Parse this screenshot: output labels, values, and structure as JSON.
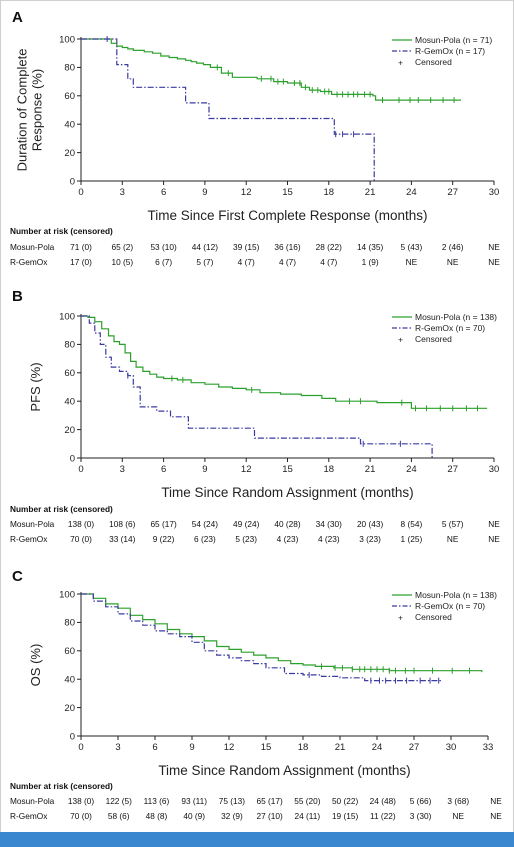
{
  "colors": {
    "mosun": "#2ca02c",
    "gemox": "#3a3aa0",
    "bar": "#3a86cf"
  },
  "risk_header": "Number at risk (censored)",
  "chart_data": [
    {
      "panel": "A",
      "type": "line",
      "title": "",
      "xlabel": "Time Since First Complete Response (months)",
      "ylabel_lines": [
        "Duration of Complete",
        "Response (%)"
      ],
      "xlim": [
        0,
        30
      ],
      "ylim": [
        0,
        100
      ],
      "xticks": [
        0,
        3,
        6,
        9,
        12,
        15,
        18,
        21,
        24,
        27,
        30
      ],
      "yticks": [
        0,
        20,
        40,
        60,
        80,
        100
      ],
      "legend_position": "top-right",
      "censor_legend": "Censored",
      "series": [
        {
          "name": "Mosun-Pola (n = 71)",
          "style": "solid",
          "x": [
            0,
            1.8,
            2.2,
            2.6,
            3.0,
            3.4,
            3.8,
            4.6,
            5.2,
            5.8,
            6.4,
            7.0,
            7.6,
            8.0,
            8.4,
            8.9,
            9.4,
            10.2,
            11.0,
            12.8,
            14.0,
            15.0,
            16.0,
            16.6,
            17.4,
            18.2,
            21.2,
            21.4,
            27.6
          ],
          "y": [
            100,
            100,
            97,
            95,
            94,
            93,
            92,
            91,
            90,
            88,
            87,
            86,
            85,
            84,
            83,
            82,
            80,
            76,
            73,
            72,
            70,
            69,
            66,
            64,
            63,
            61,
            60,
            57,
            57
          ],
          "censor_x": [
            9.9,
            10.7,
            13.1,
            13.8,
            14.3,
            14.7,
            15.5,
            15.9,
            16.3,
            16.8,
            17.2,
            17.7,
            18.0,
            18.6,
            19.0,
            19.4,
            19.8,
            20.1,
            20.6,
            21.0,
            21.9,
            23.1,
            23.9,
            24.5,
            25.4,
            26.3,
            27.1
          ]
        },
        {
          "name": "R-GemOx (n = 17)",
          "style": "dashdot",
          "x": [
            0,
            2.0,
            2.6,
            3.4,
            3.8,
            7.6,
            9.3,
            18.1,
            18.4,
            21.3,
            21.3
          ],
          "y": [
            100,
            100,
            82,
            72,
            66,
            55,
            44,
            44,
            33,
            33,
            0
          ],
          "censor_x": [
            1.9,
            18.5,
            19.0,
            19.8
          ]
        }
      ],
      "risk_table": {
        "labels": [
          "Mosun-Pola",
          "R-GemOx"
        ],
        "rows": [
          [
            "71 (0)",
            "65 (2)",
            "53 (10)",
            "44 (12)",
            "39 (15)",
            "36 (16)",
            "28 (22)",
            "14 (35)",
            "5 (43)",
            "2 (46)",
            "NE"
          ],
          [
            "17 (0)",
            "10 (5)",
            "6 (7)",
            "5 (7)",
            "4 (7)",
            "4 (7)",
            "4 (7)",
            "1 (9)",
            "NE",
            "NE",
            "NE"
          ]
        ]
      }
    },
    {
      "panel": "B",
      "type": "line",
      "title": "",
      "xlabel": "Time Since Random Assignment (months)",
      "ylabel_lines": [
        "PFS (%)"
      ],
      "xlim": [
        0,
        30
      ],
      "ylim": [
        0,
        100
      ],
      "xticks": [
        0,
        3,
        6,
        9,
        12,
        15,
        18,
        21,
        24,
        27,
        30
      ],
      "yticks": [
        0,
        20,
        40,
        60,
        80,
        100
      ],
      "legend_position": "top-right",
      "censor_legend": "Censored",
      "series": [
        {
          "name": "Mosun-Pola (n = 138)",
          "style": "solid",
          "x": [
            0,
            0.5,
            1.0,
            1.5,
            2.0,
            2.4,
            2.8,
            3.2,
            3.6,
            4.0,
            4.5,
            5.0,
            5.5,
            6.0,
            7.0,
            8.0,
            9.0,
            10.0,
            11.0,
            12.0,
            13.0,
            14.5,
            16.0,
            17.5,
            18.5,
            21.5,
            24.0,
            29.5
          ],
          "y": [
            100,
            99,
            96,
            91,
            86,
            82,
            80,
            74,
            68,
            64,
            61,
            59,
            57,
            56,
            55,
            53,
            52,
            50,
            49,
            48,
            46,
            45,
            44,
            42,
            40,
            39,
            35,
            35
          ],
          "censor_x": [
            6.6,
            7.4,
            12.4,
            19.5,
            20.3,
            23.3,
            24.3,
            25.1,
            26.1,
            27.0,
            28.0,
            28.8
          ]
        },
        {
          "name": "R-GemOx (n = 70)",
          "style": "dashdot",
          "x": [
            0,
            0.6,
            1.0,
            1.4,
            1.8,
            2.2,
            2.8,
            3.4,
            3.8,
            4.3,
            5.5,
            6.5,
            7.8,
            11.5,
            12.6,
            13.3,
            20.3,
            25.5,
            25.5
          ],
          "y": [
            100,
            95,
            88,
            80,
            71,
            64,
            61,
            58,
            50,
            36,
            33,
            29,
            21,
            21,
            14,
            14,
            10,
            10,
            0
          ],
          "censor_x": [
            3.4,
            20.5,
            23.2
          ]
        }
      ],
      "risk_table": {
        "labels": [
          "Mosun-Pola",
          "R-GemOx"
        ],
        "rows": [
          [
            "138 (0)",
            "108 (6)",
            "65 (17)",
            "54 (24)",
            "49 (24)",
            "40 (28)",
            "34 (30)",
            "20 (43)",
            "8 (54)",
            "5 (57)",
            "NE"
          ],
          [
            "70 (0)",
            "33 (14)",
            "9 (22)",
            "6 (23)",
            "5 (23)",
            "4 (23)",
            "4 (23)",
            "3 (23)",
            "1 (25)",
            "NE",
            "NE"
          ]
        ]
      }
    },
    {
      "panel": "C",
      "type": "line",
      "title": "",
      "xlabel": "Time Since Random Assignment (months)",
      "ylabel_lines": [
        "OS (%)"
      ],
      "xlim": [
        0,
        33
      ],
      "ylim": [
        0,
        100
      ],
      "xticks": [
        0,
        3,
        6,
        9,
        12,
        15,
        18,
        21,
        24,
        27,
        30,
        33
      ],
      "yticks": [
        0,
        20,
        40,
        60,
        80,
        100
      ],
      "legend_position": "top-right",
      "censor_legend": "Censored",
      "series": [
        {
          "name": "Mosun-Pola (n = 138)",
          "style": "solid",
          "x": [
            0,
            1.0,
            2.0,
            3.0,
            4.0,
            5.0,
            6.0,
            7.0,
            8.0,
            9.0,
            10.0,
            11.0,
            12.0,
            13.0,
            14.0,
            15.0,
            16.0,
            17.0,
            18.0,
            19.0,
            20.5,
            22.0,
            25.0,
            32.5
          ],
          "y": [
            100,
            97,
            93,
            90,
            85,
            82,
            79,
            75,
            72,
            70,
            67,
            63,
            61,
            59,
            57,
            55,
            53,
            51,
            50,
            49,
            48,
            47,
            46,
            45
          ],
          "censor_x": [
            19.5,
            20.6,
            21.2,
            22.0,
            22.6,
            23.0,
            23.5,
            24.0,
            24.5,
            25.0,
            25.5,
            26.3,
            27.0,
            28.5,
            30.1,
            31.5
          ]
        },
        {
          "name": "R-GemOx (n = 70)",
          "style": "dashdot",
          "x": [
            0,
            1.0,
            2.0,
            3.0,
            4.0,
            5.0,
            6.0,
            7.0,
            8.0,
            9.0,
            10.0,
            11.0,
            12.0,
            13.0,
            14.0,
            15.0,
            16.5,
            18.0,
            19.5,
            21.0,
            23.0,
            29.3
          ],
          "y": [
            100,
            95,
            91,
            86,
            81,
            78,
            74,
            72,
            70,
            66,
            60,
            57,
            55,
            53,
            51,
            48,
            44,
            43,
            42,
            41,
            39,
            39
          ],
          "censor_x": [
            18.5,
            23.5,
            24.2,
            24.7,
            25.5,
            26.4,
            27.5,
            28.3,
            29.0
          ]
        }
      ],
      "risk_table": {
        "labels": [
          "Mosun-Pola",
          "R-GemOx"
        ],
        "rows": [
          [
            "138 (0)",
            "122 (5)",
            "113 (6)",
            "93 (11)",
            "75 (13)",
            "65 (17)",
            "55 (20)",
            "50 (22)",
            "24 (48)",
            "5 (66)",
            "3 (68)",
            "NE"
          ],
          [
            "70 (0)",
            "58 (6)",
            "48 (8)",
            "40 (9)",
            "32 (9)",
            "27 (10)",
            "24 (11)",
            "19 (15)",
            "11 (22)",
            "3 (30)",
            "NE",
            "NE"
          ]
        ]
      }
    }
  ]
}
